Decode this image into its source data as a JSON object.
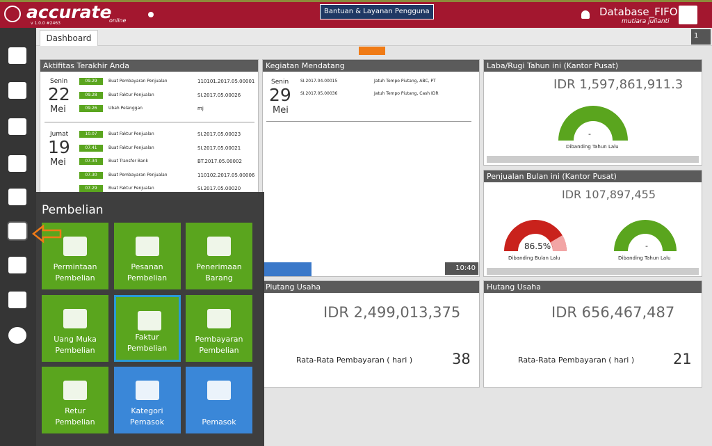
{
  "header": {
    "logo": "accurate",
    "logo_sub": "online",
    "version": "v 1.0.0 #2463",
    "help": "Bantuan & Layanan Pengguna",
    "database": "Database_FIFO",
    "user": "mutiara julianti"
  },
  "tab": {
    "label": "Dashboard",
    "page": "1"
  },
  "activities": {
    "title": "Aktifitas Terakhir Anda",
    "days": [
      {
        "weekday": "Senin",
        "day": "22",
        "month": "Mei",
        "items": [
          {
            "time": "09.29",
            "action": "Buat Pembayaran Penjualan",
            "ref": "110101.2017.05.00001"
          },
          {
            "time": "09.28",
            "action": "Buat Faktur Penjualan",
            "ref": "SI.2017.05.00026"
          },
          {
            "time": "09.26",
            "action": "Ubah Pelanggan",
            "ref": "mj"
          }
        ]
      },
      {
        "weekday": "Jumat",
        "day": "19",
        "month": "Mei",
        "items": [
          {
            "time": "10.07",
            "action": "Buat Faktur Penjualan",
            "ref": "SI.2017.05.00023"
          },
          {
            "time": "07.41",
            "action": "Buat Faktur Penjualan",
            "ref": "SI.2017.05.00021"
          },
          {
            "time": "07.34",
            "action": "Buat Transfer Bank",
            "ref": "BT.2017.05.00002"
          },
          {
            "time": "07.30",
            "action": "Buat Pembayaran Penjualan",
            "ref": "110102.2017.05.00006"
          },
          {
            "time": "07.29",
            "action": "Buat Faktur Penjualan",
            "ref": "SI.2017.05.00020"
          }
        ]
      }
    ]
  },
  "upcoming": {
    "title": "Kegiatan Mendatang",
    "weekday": "Senin",
    "day": "29",
    "month": "Mei",
    "items": [
      {
        "ref": "SI.2017.04.00015",
        "desc": "Jatuh Tempo Piutang, ABC, PT"
      },
      {
        "ref": "SI.2017.05.00036",
        "desc": "Jatuh Tempo Piutang, Cash IDR"
      }
    ],
    "time": "10:40"
  },
  "profit": {
    "title": "Laba/Rugi Tahun ini (Kantor Pusat)",
    "amount": "IDR 1,597,861,911.3",
    "gauge": "-",
    "caption": "Dibanding Tahun Lalu"
  },
  "sales": {
    "title": "Penjualan Bulan ini (Kantor Pusat)",
    "amount": "IDR 107,897,455",
    "gauges": [
      {
        "value": "86.5%",
        "caption": "Dibanding Bulan Lalu"
      },
      {
        "value": "-",
        "caption": "Dibanding Tahun Lalu"
      }
    ]
  },
  "receivable": {
    "title": "Piutang Usaha",
    "amount": "IDR 2,499,013,375",
    "label": "Rata-Rata Pembayaran ( hari )",
    "days": "38"
  },
  "payable": {
    "title": "Hutang Usaha",
    "amount": "IDR 656,467,487",
    "label": "Rata-Rata Pembayaran ( hari )",
    "days": "21"
  },
  "menu": {
    "title": "Pembelian",
    "tiles": [
      {
        "lines": [
          "Permintaan",
          "Pembelian"
        ]
      },
      {
        "lines": [
          "Pesanan",
          "Pembelian"
        ]
      },
      {
        "lines": [
          "Penerimaan",
          "Barang"
        ]
      },
      {
        "lines": [
          "Uang Muka",
          "Pembelian"
        ]
      },
      {
        "lines": [
          "Faktur",
          "Pembelian"
        ]
      },
      {
        "lines": [
          "Pembayaran",
          "Pembelian"
        ]
      },
      {
        "lines": [
          "Retur",
          "Pembelian"
        ]
      },
      {
        "lines": [
          "Kategori",
          "Pemasok"
        ]
      },
      {
        "lines": [
          "Pemasok"
        ]
      }
    ]
  }
}
